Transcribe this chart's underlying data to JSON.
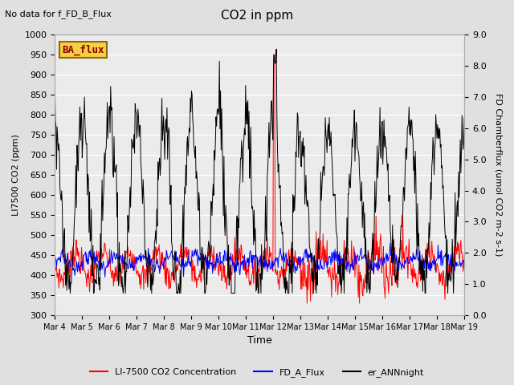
{
  "title": "CO2 in ppm",
  "top_left_text": "No data for f_FD_B_Flux",
  "legend_box_text": "BA_flux",
  "xlabel": "Time",
  "ylabel_left": "LI7500 CO2 (ppm)",
  "ylabel_right": "FD Chamberflux (umol CO2 m-2 s-1)",
  "ylim_left": [
    300,
    1000
  ],
  "ylim_right": [
    0.0,
    9.0
  ],
  "yticks_left": [
    300,
    350,
    400,
    450,
    500,
    550,
    600,
    650,
    700,
    750,
    800,
    850,
    900,
    950,
    1000
  ],
  "yticks_right_vals": [
    0.0,
    1.0,
    2.0,
    3.0,
    4.0,
    5.0,
    6.0,
    7.0,
    8.0,
    9.0
  ],
  "yticks_right_labels": [
    "0.0",
    "1.0",
    "2.0",
    "3.0",
    "4.0",
    "5.0",
    "6.0",
    "7.0",
    "8.0",
    "9.0"
  ],
  "xtick_positions": [
    0,
    1,
    2,
    3,
    4,
    5,
    6,
    7,
    8,
    9,
    10,
    11,
    12,
    13,
    14,
    15
  ],
  "xtick_labels": [
    "Mar 4",
    "Mar 5",
    "Mar 6",
    "Mar 7",
    "Mar 8",
    "Mar 9",
    "Mar 10",
    "Mar 11",
    "Mar 12",
    "Mar 13",
    "Mar 14",
    "Mar 15",
    "Mar 16",
    "Mar 17",
    "Mar 18",
    "Mar 19"
  ],
  "legend_labels": [
    "LI-7500 CO2 Concentration",
    "FD_A_Flux",
    "er_ANNnight"
  ],
  "legend_colors": [
    "red",
    "blue",
    "black"
  ],
  "bg_color": "#e0e0e0",
  "plot_bg_color": "#ebebeb",
  "grid_color": "white",
  "n_days": 15,
  "n_points_per_day": 48
}
